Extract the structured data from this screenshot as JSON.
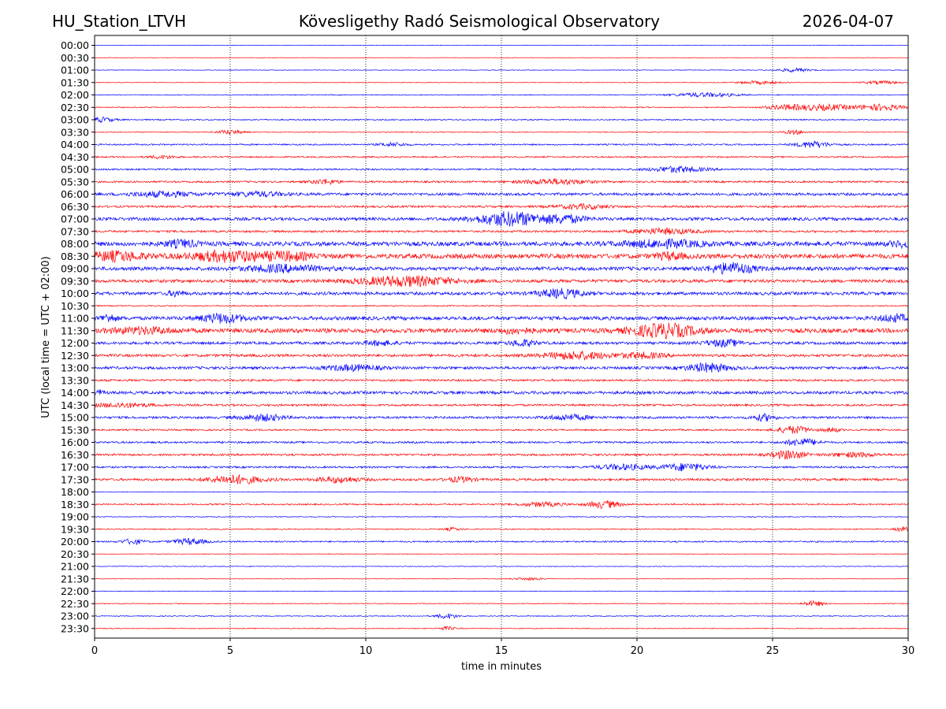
{
  "chart_data": {
    "type": "line",
    "title_left": "HU_Station_LTVH",
    "title": "Kövesligethy Radó Seismological Observatory",
    "title_right": "2026-04-07",
    "xlabel": "time in minutes",
    "ylabel": "UTC (local time = UTC + 02:00)",
    "xlim": [
      0,
      30
    ],
    "xticks": [
      "0",
      "5",
      "10",
      "15",
      "20",
      "25",
      "30"
    ],
    "grid": "vertical dotted at 5-minute intervals",
    "colors": {
      "even_rows": "#0000ff",
      "odd_rows": "#ff0000",
      "grid": "#000000",
      "text": "#000000"
    },
    "rows": [
      {
        "label": "00:00",
        "noise": 0.05,
        "bursts": []
      },
      {
        "label": "00:30",
        "noise": 0.04,
        "bursts": []
      },
      {
        "label": "01:00",
        "noise": 0.06,
        "bursts": [
          [
            25.8,
            0.6,
            0.35
          ]
        ]
      },
      {
        "label": "01:30",
        "noise": 0.06,
        "bursts": [
          [
            24.5,
            0.8,
            0.3
          ],
          [
            29,
            0.7,
            0.3
          ]
        ]
      },
      {
        "label": "02:00",
        "noise": 0.08,
        "bursts": [
          [
            22.5,
            1.2,
            0.4
          ]
        ]
      },
      {
        "label": "02:30",
        "noise": 0.1,
        "bursts": [
          [
            25.5,
            0.8,
            0.45
          ],
          [
            27,
            1,
            0.55
          ],
          [
            29,
            0.8,
            0.6
          ]
        ]
      },
      {
        "label": "03:00",
        "noise": 0.12,
        "bursts": [
          [
            0.3,
            0.4,
            0.45
          ]
        ]
      },
      {
        "label": "03:30",
        "noise": 0.08,
        "bursts": [
          [
            5,
            0.5,
            0.4
          ],
          [
            25.8,
            0.4,
            0.4
          ]
        ]
      },
      {
        "label": "04:00",
        "noise": 0.14,
        "bursts": [
          [
            11,
            0.5,
            0.35
          ],
          [
            26.5,
            0.6,
            0.6
          ]
        ]
      },
      {
        "label": "04:30",
        "noise": 0.14,
        "bursts": [
          [
            2.5,
            0.5,
            0.3
          ]
        ]
      },
      {
        "label": "05:00",
        "noise": 0.16,
        "bursts": [
          [
            21.5,
            1,
            0.55
          ]
        ]
      },
      {
        "label": "05:30",
        "noise": 0.18,
        "bursts": [
          [
            8.5,
            0.5,
            0.45
          ],
          [
            17,
            1.2,
            0.5
          ]
        ]
      },
      {
        "label": "06:00",
        "noise": 0.26,
        "bursts": [
          [
            2.5,
            1.2,
            0.45
          ],
          [
            6,
            1,
            0.4
          ]
        ]
      },
      {
        "label": "06:30",
        "noise": 0.2,
        "bursts": [
          [
            18,
            1,
            0.4
          ]
        ]
      },
      {
        "label": "07:00",
        "noise": 0.3,
        "bursts": [
          [
            15.3,
            1.2,
            1.3
          ],
          [
            17.3,
            0.8,
            0.7
          ]
        ]
      },
      {
        "label": "07:30",
        "noise": 0.2,
        "bursts": [
          [
            21,
            1.2,
            0.5
          ]
        ]
      },
      {
        "label": "08:00",
        "noise": 0.42,
        "bursts": [
          [
            3.2,
            0.6,
            0.6
          ],
          [
            21,
            1.5,
            0.6
          ],
          [
            30,
            0.7,
            0.5
          ]
        ]
      },
      {
        "label": "08:30",
        "noise": 0.45,
        "bursts": [
          [
            0.8,
            1,
            0.8
          ],
          [
            5,
            1.5,
            0.9
          ],
          [
            7.2,
            0.8,
            0.6
          ],
          [
            21.2,
            0.5,
            0.6
          ]
        ]
      },
      {
        "label": "09:00",
        "noise": 0.35,
        "bursts": [
          [
            7,
            1.5,
            0.6
          ],
          [
            23.5,
            0.8,
            1.0
          ]
        ]
      },
      {
        "label": "09:30",
        "noise": 0.3,
        "bursts": [
          [
            11.5,
            1.8,
            0.9
          ]
        ]
      },
      {
        "label": "10:00",
        "noise": 0.3,
        "bursts": [
          [
            17.2,
            0.8,
            0.8
          ],
          [
            3,
            0.3,
            0.5
          ]
        ]
      },
      {
        "label": "10:30",
        "noise": 0.12,
        "bursts": []
      },
      {
        "label": "11:00",
        "noise": 0.35,
        "bursts": [
          [
            0.5,
            0.3,
            0.7
          ],
          [
            4.7,
            0.8,
            0.8
          ],
          [
            29.5,
            0.6,
            0.6
          ]
        ]
      },
      {
        "label": "11:30",
        "noise": 0.42,
        "bursts": [
          [
            1.8,
            1.2,
            0.5
          ],
          [
            21,
            1.2,
            1.2
          ],
          [
            15.5,
            0.6,
            0.4
          ]
        ]
      },
      {
        "label": "12:00",
        "noise": 0.26,
        "bursts": [
          [
            15.8,
            0.5,
            0.6
          ],
          [
            23.2,
            0.7,
            0.6
          ],
          [
            10.5,
            0.6,
            0.4
          ]
        ]
      },
      {
        "label": "12:30",
        "noise": 0.26,
        "bursts": [
          [
            17.8,
            1.2,
            0.7
          ],
          [
            20.2,
            0.8,
            0.5
          ]
        ]
      },
      {
        "label": "13:00",
        "noise": 0.26,
        "bursts": [
          [
            9.5,
            1,
            0.5
          ],
          [
            22.6,
            0.8,
            0.8
          ]
        ]
      },
      {
        "label": "13:30",
        "noise": 0.2,
        "bursts": []
      },
      {
        "label": "14:00",
        "noise": 0.28,
        "bursts": [
          [
            0.1,
            0.2,
            0.5
          ]
        ]
      },
      {
        "label": "14:30",
        "noise": 0.2,
        "bursts": [
          [
            1,
            1,
            0.4
          ]
        ]
      },
      {
        "label": "15:00",
        "noise": 0.22,
        "bursts": [
          [
            6.2,
            0.8,
            0.6
          ],
          [
            17.5,
            0.8,
            0.5
          ],
          [
            24.7,
            0.4,
            0.6
          ]
        ]
      },
      {
        "label": "15:30",
        "noise": 0.16,
        "bursts": [
          [
            25.8,
            0.6,
            0.7
          ],
          [
            27.2,
            0.3,
            0.4
          ]
        ]
      },
      {
        "label": "16:00",
        "noise": 0.18,
        "bursts": [
          [
            26.1,
            0.6,
            0.7
          ]
        ]
      },
      {
        "label": "16:30",
        "noise": 0.2,
        "bursts": [
          [
            25.6,
            0.6,
            0.8
          ],
          [
            28,
            0.8,
            0.4
          ]
        ]
      },
      {
        "label": "17:00",
        "noise": 0.18,
        "bursts": [
          [
            19.5,
            1,
            0.5
          ],
          [
            21.8,
            0.8,
            0.7
          ]
        ]
      },
      {
        "label": "17:30",
        "noise": 0.22,
        "bursts": [
          [
            5.2,
            1,
            0.8
          ],
          [
            9,
            0.8,
            0.5
          ],
          [
            13.5,
            0.5,
            0.45
          ]
        ]
      },
      {
        "label": "18:00",
        "noise": 0.06,
        "bursts": []
      },
      {
        "label": "18:30",
        "noise": 0.14,
        "bursts": [
          [
            16.5,
            0.8,
            0.4
          ],
          [
            18.8,
            0.6,
            0.7
          ]
        ]
      },
      {
        "label": "19:00",
        "noise": 0.08,
        "bursts": []
      },
      {
        "label": "19:30",
        "noise": 0.1,
        "bursts": [
          [
            29.8,
            0.3,
            0.4
          ],
          [
            13.2,
            0.3,
            0.3
          ]
        ]
      },
      {
        "label": "20:00",
        "noise": 0.14,
        "bursts": [
          [
            1.4,
            0.4,
            0.5
          ],
          [
            3.5,
            0.6,
            0.6
          ]
        ]
      },
      {
        "label": "20:30",
        "noise": 0.06,
        "bursts": []
      },
      {
        "label": "21:00",
        "noise": 0.07,
        "bursts": []
      },
      {
        "label": "21:30",
        "noise": 0.05,
        "bursts": [
          [
            16,
            0.6,
            0.25
          ]
        ]
      },
      {
        "label": "22:00",
        "noise": 0.06,
        "bursts": []
      },
      {
        "label": "22:30",
        "noise": 0.08,
        "bursts": [
          [
            26.5,
            0.4,
            0.5
          ]
        ]
      },
      {
        "label": "23:00",
        "noise": 0.08,
        "bursts": [
          [
            13,
            0.4,
            0.5
          ]
        ]
      },
      {
        "label": "23:30",
        "noise": 0.08,
        "bursts": [
          [
            13,
            0.3,
            0.35
          ]
        ]
      }
    ]
  }
}
